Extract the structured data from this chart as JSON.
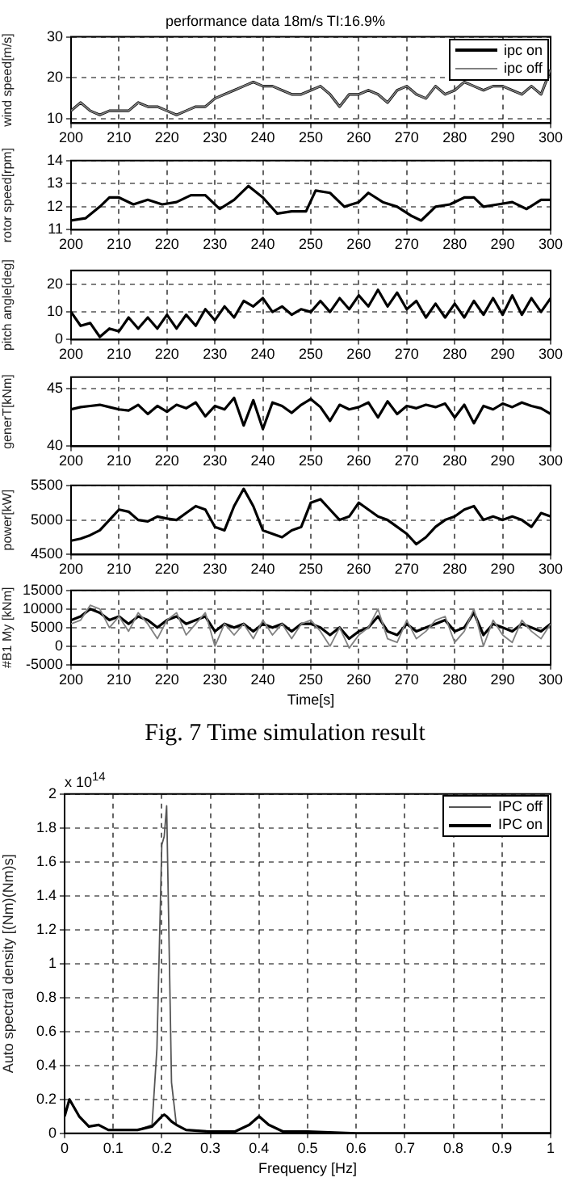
{
  "chart_data": [
    {
      "type": "line",
      "title": "performance data 18m/s TI:16.9%",
      "ylabel": "wind speed[m/s]",
      "xlim": [
        200,
        300
      ],
      "xticks": [
        200,
        210,
        220,
        230,
        240,
        250,
        260,
        270,
        280,
        290,
        300
      ],
      "ylim": [
        9,
        30
      ],
      "yticks": [
        10,
        20,
        30
      ],
      "grid": true,
      "legend": "top right",
      "x": [
        200,
        202,
        204,
        206,
        208,
        210,
        212,
        214,
        216,
        218,
        220,
        222,
        224,
        226,
        228,
        230,
        232,
        234,
        236,
        238,
        240,
        242,
        244,
        246,
        248,
        250,
        252,
        254,
        256,
        258,
        260,
        262,
        264,
        266,
        268,
        270,
        272,
        274,
        276,
        278,
        280,
        282,
        284,
        286,
        288,
        290,
        292,
        294,
        296,
        298,
        300
      ],
      "series": [
        {
          "name": "ipc on",
          "color": "#000000",
          "values": [
            12,
            14,
            12,
            11,
            12,
            12,
            12,
            14,
            13,
            13,
            12,
            11,
            12,
            13,
            13,
            15,
            16,
            17,
            18,
            19,
            18,
            18,
            17,
            16,
            16,
            17,
            18,
            16,
            13,
            16,
            16,
            17,
            16,
            14,
            17,
            18,
            16,
            15,
            18,
            16,
            17,
            19,
            18,
            17,
            18,
            18,
            17,
            16,
            18,
            16,
            22
          ]
        },
        {
          "name": "ipc off",
          "color": "#808080",
          "values": [
            12,
            14,
            12,
            11,
            12,
            12,
            12,
            14,
            13,
            13,
            12,
            11,
            12,
            13,
            13,
            15,
            16,
            17,
            18,
            19,
            18,
            18,
            17,
            16,
            16,
            17,
            18,
            16,
            13,
            16,
            16,
            17,
            16,
            14,
            17,
            18,
            16,
            15,
            18,
            16,
            17,
            19,
            18,
            17,
            18,
            18,
            17,
            16,
            18,
            16,
            22
          ]
        }
      ]
    },
    {
      "type": "line",
      "ylabel": "rotor speed[rpm]",
      "xlim": [
        200,
        300
      ],
      "xticks": [
        200,
        210,
        220,
        230,
        240,
        250,
        260,
        270,
        280,
        290,
        300
      ],
      "ylim": [
        11,
        14
      ],
      "yticks": [
        11,
        12,
        13,
        14
      ],
      "grid": true,
      "x": [
        200,
        203,
        206,
        208,
        210,
        213,
        216,
        219,
        222,
        225,
        228,
        231,
        234,
        237,
        240,
        243,
        246,
        249,
        251,
        254,
        257,
        260,
        262,
        265,
        268,
        271,
        273,
        276,
        279,
        282,
        284,
        286,
        289,
        292,
        295,
        298,
        300
      ],
      "series": [
        {
          "color": "#000000",
          "values": [
            11.4,
            11.5,
            12.0,
            12.4,
            12.4,
            12.1,
            12.3,
            12.1,
            12.2,
            12.5,
            12.5,
            11.9,
            12.3,
            12.9,
            12.4,
            11.7,
            11.8,
            11.8,
            12.7,
            12.6,
            12.0,
            12.2,
            12.6,
            12.2,
            12.0,
            11.6,
            11.4,
            12.0,
            12.1,
            12.4,
            12.4,
            12.0,
            12.1,
            12.2,
            11.9,
            12.3,
            12.3
          ]
        }
      ]
    },
    {
      "type": "line",
      "ylabel": "pitch angle[deg]",
      "xlim": [
        200,
        300
      ],
      "xticks": [
        200,
        210,
        220,
        230,
        240,
        250,
        260,
        270,
        280,
        290,
        300
      ],
      "ylim": [
        0,
        25
      ],
      "yticks": [
        0,
        10,
        20
      ],
      "grid": true,
      "x": [
        200,
        202,
        204,
        206,
        208,
        210,
        212,
        214,
        216,
        218,
        220,
        222,
        224,
        226,
        228,
        230,
        232,
        234,
        236,
        238,
        240,
        242,
        244,
        246,
        248,
        250,
        252,
        254,
        256,
        258,
        260,
        262,
        264,
        266,
        268,
        270,
        272,
        274,
        276,
        278,
        280,
        282,
        284,
        286,
        288,
        290,
        292,
        294,
        296,
        298,
        300
      ],
      "series": [
        {
          "color": "#000000",
          "values": [
            10,
            5,
            6,
            1,
            4,
            3,
            8,
            4,
            8,
            4,
            9,
            4,
            9,
            5,
            11,
            7,
            12,
            8,
            14,
            12,
            15,
            10,
            12,
            9,
            11,
            10,
            14,
            10,
            15,
            11,
            16,
            12,
            18,
            12,
            17,
            11,
            14,
            8,
            13,
            8,
            13,
            8,
            14,
            9,
            15,
            9,
            16,
            9,
            15,
            10,
            15
          ]
        }
      ]
    },
    {
      "type": "line",
      "ylabel": "generT[kNm]",
      "xlim": [
        200,
        300
      ],
      "xticks": [
        200,
        210,
        220,
        230,
        240,
        250,
        260,
        270,
        280,
        290,
        300
      ],
      "ylim": [
        40,
        46
      ],
      "yticks": [
        40,
        45
      ],
      "grid": true,
      "x": [
        200,
        202,
        204,
        206,
        208,
        210,
        212,
        214,
        216,
        218,
        220,
        222,
        224,
        226,
        228,
        230,
        232,
        234,
        236,
        238,
        240,
        242,
        244,
        246,
        248,
        250,
        252,
        254,
        256,
        258,
        260,
        262,
        264,
        266,
        268,
        270,
        272,
        274,
        276,
        278,
        280,
        282,
        284,
        286,
        288,
        290,
        292,
        294,
        296,
        298,
        300
      ],
      "series": [
        {
          "color": "#000000",
          "values": [
            43.2,
            43.4,
            43.5,
            43.6,
            43.4,
            43.2,
            43.1,
            43.6,
            42.8,
            43.5,
            43.0,
            43.6,
            43.3,
            43.8,
            42.6,
            43.5,
            43.2,
            44.2,
            41.8,
            44.0,
            41.5,
            43.8,
            43.5,
            42.9,
            43.6,
            44.1,
            43.4,
            42.2,
            43.6,
            43.2,
            43.4,
            43.8,
            42.5,
            43.9,
            42.8,
            43.5,
            43.3,
            43.6,
            43.4,
            43.7,
            42.5,
            43.6,
            42.0,
            43.5,
            43.2,
            43.7,
            43.4,
            43.8,
            43.5,
            43.3,
            42.8
          ]
        }
      ]
    },
    {
      "type": "line",
      "ylabel": "power[kW]",
      "xlim": [
        200,
        300
      ],
      "xticks": [
        200,
        210,
        220,
        230,
        240,
        250,
        260,
        270,
        280,
        290,
        300
      ],
      "ylim": [
        4500,
        5500
      ],
      "yticks": [
        4500,
        5000,
        5500
      ],
      "grid": true,
      "x": [
        200,
        202,
        204,
        206,
        208,
        210,
        212,
        214,
        216,
        218,
        220,
        222,
        224,
        226,
        228,
        230,
        232,
        234,
        236,
        238,
        240,
        242,
        244,
        246,
        248,
        250,
        252,
        254,
        256,
        258,
        260,
        262,
        264,
        266,
        268,
        270,
        272,
        274,
        276,
        278,
        280,
        282,
        284,
        286,
        288,
        290,
        292,
        294,
        296,
        298,
        300
      ],
      "series": [
        {
          "color": "#000000",
          "values": [
            4700,
            4730,
            4780,
            4850,
            5000,
            5150,
            5120,
            5000,
            4980,
            5050,
            5020,
            5000,
            5100,
            5200,
            5150,
            4900,
            4850,
            5200,
            5450,
            5200,
            4850,
            4800,
            4750,
            4850,
            4900,
            5250,
            5300,
            5150,
            5000,
            5050,
            5250,
            5150,
            5050,
            5000,
            4900,
            4800,
            4650,
            4750,
            4900,
            5000,
            5050,
            5150,
            5200,
            5000,
            5050,
            5000,
            5050,
            5000,
            4900,
            5100,
            5050
          ]
        }
      ]
    },
    {
      "type": "line",
      "ylabel": "#B1 My [kNm]",
      "xlabel": "Time[s]",
      "annotations": [
        "Fig. 7 Time simulation result"
      ],
      "xlim": [
        200,
        300
      ],
      "xticks": [
        200,
        210,
        220,
        230,
        240,
        250,
        260,
        270,
        280,
        290,
        300
      ],
      "ylim": [
        -5000,
        15000
      ],
      "yticks": [
        -5000,
        0,
        5000,
        10000,
        15000
      ],
      "grid": true,
      "x": [
        200,
        202,
        204,
        206,
        208,
        210,
        212,
        214,
        216,
        218,
        220,
        222,
        224,
        226,
        228,
        230,
        232,
        234,
        236,
        238,
        240,
        242,
        244,
        246,
        248,
        250,
        252,
        254,
        256,
        258,
        260,
        262,
        264,
        266,
        268,
        270,
        272,
        274,
        276,
        278,
        280,
        282,
        284,
        286,
        288,
        290,
        292,
        294,
        296,
        298,
        300
      ],
      "series": [
        {
          "color": "#000000",
          "values": [
            7000,
            8000,
            10000,
            9000,
            7000,
            8000,
            6000,
            8000,
            7000,
            5000,
            7000,
            8000,
            6000,
            7000,
            8000,
            4000,
            6000,
            5000,
            6000,
            4000,
            6000,
            5000,
            6000,
            4000,
            6000,
            6000,
            5000,
            3000,
            5000,
            2000,
            4000,
            5000,
            8000,
            4000,
            3000,
            6000,
            4000,
            5000,
            6000,
            7000,
            4000,
            5000,
            9000,
            3000,
            6000,
            5000,
            4000,
            6000,
            5000,
            4000,
            6000
          ]
        },
        {
          "color": "#808080",
          "values": [
            6000,
            7000,
            11000,
            10000,
            5000,
            8000,
            4000,
            9000,
            6000,
            2000,
            7000,
            9000,
            3000,
            6000,
            9000,
            0,
            6000,
            3000,
            6000,
            2000,
            7000,
            3000,
            6000,
            2000,
            6000,
            7000,
            4000,
            0,
            5000,
            -500,
            3000,
            5000,
            10000,
            2000,
            1000,
            7000,
            2000,
            4000,
            7000,
            8000,
            1000,
            4000,
            10000,
            0,
            7000,
            3000,
            1000,
            7000,
            4000,
            2000,
            6000
          ]
        }
      ]
    },
    {
      "type": "line",
      "xlabel": "Frequency [Hz]",
      "ylabel": "Auto spectral density [(Nm)(Nm)s]",
      "annotations": [
        "x 10$^{14}$"
      ],
      "xlim": [
        0,
        1
      ],
      "xticks": [
        0,
        0.1,
        0.2,
        0.3,
        0.4,
        0.5,
        0.6,
        0.7,
        0.8,
        0.9,
        1
      ],
      "ylim": [
        0,
        2
      ],
      "yticks": [
        0,
        0.2,
        0.4,
        0.6,
        0.8,
        1,
        1.2,
        1.4,
        1.6,
        1.8,
        2
      ],
      "grid": true,
      "legend": "top right",
      "x": [
        0,
        0.01,
        0.03,
        0.05,
        0.07,
        0.09,
        0.1,
        0.15,
        0.18,
        0.19,
        0.2,
        0.205,
        0.21,
        0.22,
        0.23,
        0.25,
        0.3,
        0.35,
        0.38,
        0.4,
        0.42,
        0.45,
        0.5,
        0.6,
        0.7,
        0.8,
        0.9,
        1
      ],
      "series": [
        {
          "name": "IPC off",
          "color": "#555555",
          "values": [
            0.1,
            0.2,
            0.1,
            0.04,
            0.05,
            0.02,
            0.02,
            0.02,
            0.05,
            0.5,
            1.7,
            1.75,
            1.93,
            0.3,
            0.05,
            0.02,
            0.01,
            0.01,
            0.05,
            0.1,
            0.05,
            0.01,
            0.01,
            0,
            0,
            0,
            0,
            0
          ]
        },
        {
          "name": "IPC on",
          "color": "#000000",
          "values": [
            0.1,
            0.2,
            0.1,
            0.04,
            0.05,
            0.02,
            0.02,
            0.02,
            0.04,
            0.07,
            0.1,
            0.11,
            0.1,
            0.07,
            0.05,
            0.02,
            0.01,
            0.01,
            0.05,
            0.1,
            0.05,
            0.01,
            0.01,
            0,
            0,
            0,
            0,
            0
          ]
        }
      ]
    }
  ]
}
